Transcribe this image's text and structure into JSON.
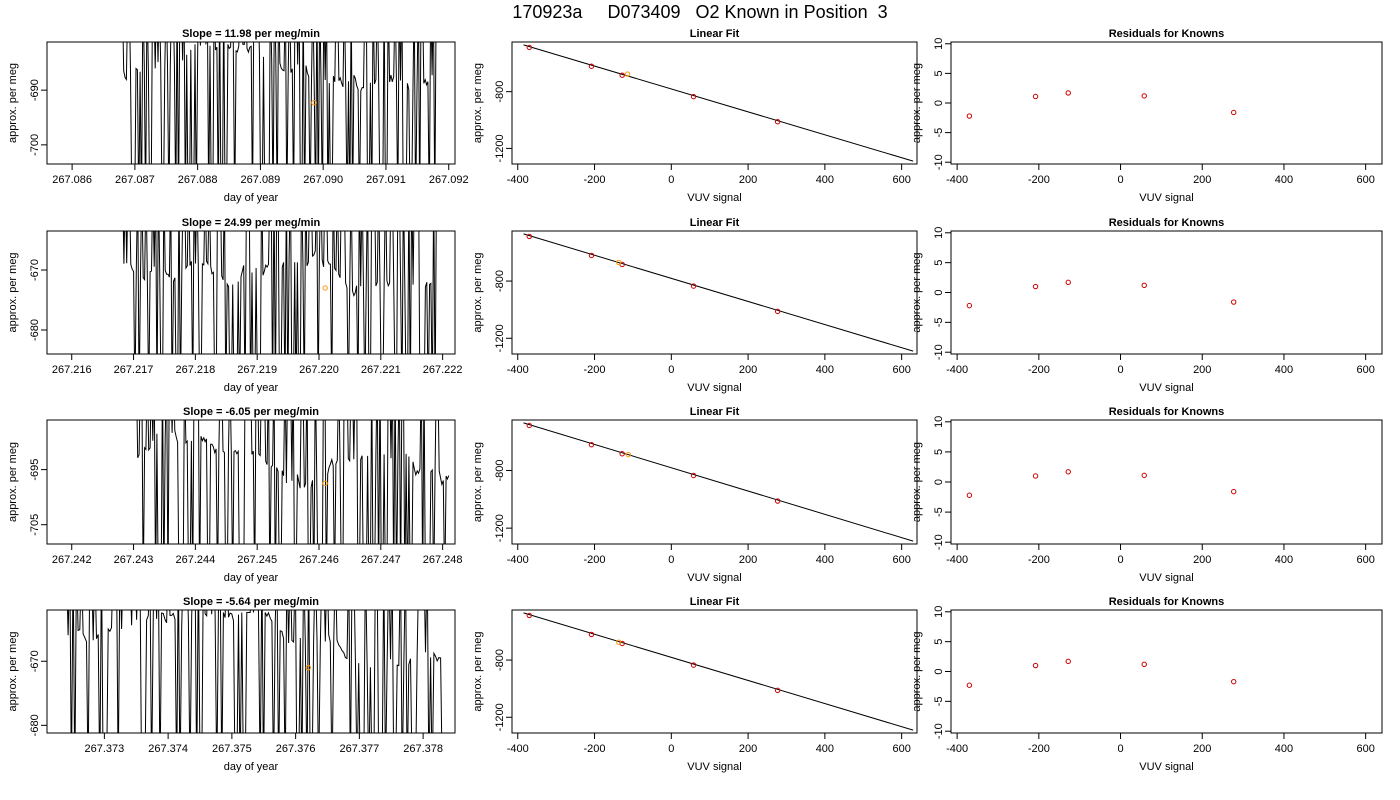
{
  "title": "170923a     D073409   O2 Known in Position  3",
  "colors": {
    "line": "#000000",
    "known_point": "#cc0000",
    "current_point": "#ff9900",
    "frame": "#000000"
  },
  "rows": [
    {
      "ts": {
        "title": "Slope =  11.98  per meg/min",
        "xlabel": "day of year",
        "ylabel": "approx. per meg",
        "xlim": [
          267.0856,
          267.0921
        ],
        "ylim": [
          -703.5,
          -681.2
        ],
        "xticks": [
          267.086,
          267.087,
          267.088,
          267.089,
          267.09,
          267.091,
          267.092
        ],
        "xtick_labels": [
          "267.086",
          "267.087",
          "267.088",
          "267.089",
          "267.090",
          "267.091",
          "267.092"
        ],
        "yticks": [
          -690,
          -700
        ],
        "ytick_labels": [
          "-690",
          "-700"
        ],
        "xstart": 267.0868,
        "xend": 267.0918,
        "marker": [
          267.08985,
          -692.3
        ],
        "seed": 7
      },
      "fit": {
        "title": "Linear Fit",
        "xlabel": "VUV signal",
        "ylabel": "approx. per meg",
        "xlim": [
          -415,
          640
        ],
        "ylim": [
          -1310,
          -450
        ],
        "xticks": [
          -400,
          -200,
          0,
          200,
          400,
          600
        ],
        "xtick_labels": [
          "-400",
          "-200",
          "0",
          "200",
          "400",
          "600"
        ],
        "yticks": [
          -800,
          -1200
        ],
        "ytick_labels": [
          "-800",
          "-1200"
        ],
        "line": [
          [
            -385,
            -470
          ],
          [
            630,
            -1290
          ]
        ],
        "knowns": [
          [
            -370,
            -488
          ],
          [
            -208,
            -621
          ],
          [
            -128,
            -684
          ],
          [
            58,
            -835
          ],
          [
            277,
            -1012
          ]
        ],
        "current": [
          [
            -114,
            -676
          ]
        ]
      },
      "res": {
        "title": "Residuals for Knowns",
        "xlabel": "VUV signal",
        "ylabel": "approx. per meg",
        "xlim": [
          -415,
          640
        ],
        "ylim": [
          -10.3,
          10.3
        ],
        "xticks": [
          -400,
          -200,
          0,
          200,
          400,
          600
        ],
        "xtick_labels": [
          "-400",
          "-200",
          "0",
          "200",
          "400",
          "600"
        ],
        "yticks": [
          10,
          5,
          0,
          -5,
          -10
        ],
        "ytick_labels": [
          "10",
          "5",
          "0",
          "-5",
          "-10"
        ],
        "points": [
          [
            -370,
            -2.2
          ],
          [
            -208,
            1.1
          ],
          [
            -128,
            1.7
          ],
          [
            58,
            1.2
          ],
          [
            277,
            -1.6
          ]
        ]
      }
    },
    {
      "ts": {
        "title": "Slope =  24.99  per meg/min",
        "xlabel": "day of year",
        "ylabel": "approx. per meg",
        "xlim": [
          267.2156,
          267.2222
        ],
        "ylim": [
          -684.0,
          -663.5
        ],
        "xticks": [
          267.216,
          267.217,
          267.218,
          267.219,
          267.22,
          267.221,
          267.222
        ],
        "xtick_labels": [
          "267.216",
          "267.217",
          "267.218",
          "267.219",
          "267.220",
          "267.221",
          "267.222"
        ],
        "yticks": [
          -670,
          -680
        ],
        "ytick_labels": [
          "-670",
          "-680"
        ],
        "xstart": 267.2168,
        "xend": 267.2219,
        "marker": [
          267.2201,
          -673.0
        ],
        "seed": 19
      },
      "fit": {
        "title": "Linear Fit",
        "xlabel": "VUV signal",
        "ylabel": "approx. per meg",
        "xlim": [
          -415,
          640
        ],
        "ylim": [
          -1310,
          -450
        ],
        "xticks": [
          -400,
          -200,
          0,
          200,
          400,
          600
        ],
        "xtick_labels": [
          "-400",
          "-200",
          "0",
          "200",
          "400",
          "600"
        ],
        "yticks": [
          -800,
          -1200
        ],
        "ytick_labels": [
          "-800",
          "-1200"
        ],
        "line": [
          [
            -385,
            -470
          ],
          [
            630,
            -1290
          ]
        ],
        "knowns": [
          [
            -370,
            -488
          ],
          [
            -208,
            -621
          ],
          [
            -128,
            -684
          ],
          [
            58,
            -835
          ],
          [
            277,
            -1012
          ]
        ],
        "current": [
          [
            -137,
            -670
          ]
        ]
      },
      "res": {
        "title": "Residuals for Knowns",
        "xlabel": "VUV signal",
        "ylabel": "approx. per meg",
        "xlim": [
          -415,
          640
        ],
        "ylim": [
          -10.3,
          10.3
        ],
        "xticks": [
          -400,
          -200,
          0,
          200,
          400,
          600
        ],
        "xtick_labels": [
          "-400",
          "-200",
          "0",
          "200",
          "400",
          "600"
        ],
        "yticks": [
          10,
          5,
          0,
          -5,
          -10
        ],
        "ytick_labels": [
          "10",
          "5",
          "0",
          "-5",
          "-10"
        ],
        "points": [
          [
            -370,
            -2.2
          ],
          [
            -208,
            1.0
          ],
          [
            -128,
            1.7
          ],
          [
            58,
            1.2
          ],
          [
            277,
            -1.6
          ]
        ]
      }
    },
    {
      "ts": {
        "title": "Slope =  -6.05  per meg/min",
        "xlabel": "day of year",
        "ylabel": "approx. per meg",
        "xlim": [
          267.2416,
          267.2482
        ],
        "ylim": [
          -708.5,
          -686.0
        ],
        "xticks": [
          267.242,
          267.243,
          267.244,
          267.245,
          267.246,
          267.247,
          267.248
        ],
        "xtick_labels": [
          "267.242",
          "267.243",
          "267.244",
          "267.245",
          "267.246",
          "267.247",
          "267.248"
        ],
        "yticks": [
          -695,
          -705
        ],
        "ytick_labels": [
          "-695",
          "-705"
        ],
        "xstart": 267.243,
        "xend": 267.2481,
        "marker": [
          267.2461,
          -697.5
        ],
        "seed": 31
      },
      "fit": {
        "title": "Linear Fit",
        "xlabel": "VUV signal",
        "ylabel": "approx. per meg",
        "xlim": [
          -415,
          640
        ],
        "ylim": [
          -1310,
          -450
        ],
        "xticks": [
          -400,
          -200,
          0,
          200,
          400,
          600
        ],
        "xtick_labels": [
          "-400",
          "-200",
          "0",
          "200",
          "400",
          "600"
        ],
        "yticks": [
          -800,
          -1200
        ],
        "ytick_labels": [
          "-800",
          "-1200"
        ],
        "line": [
          [
            -385,
            -470
          ],
          [
            630,
            -1290
          ]
        ],
        "knowns": [
          [
            -370,
            -488
          ],
          [
            -208,
            -621
          ],
          [
            -128,
            -684
          ],
          [
            58,
            -835
          ],
          [
            277,
            -1012
          ]
        ],
        "current": [
          [
            -112,
            -690
          ]
        ]
      },
      "res": {
        "title": "Residuals for Knowns",
        "xlabel": "VUV signal",
        "ylabel": "approx. per meg",
        "xlim": [
          -415,
          640
        ],
        "ylim": [
          -10.3,
          10.3
        ],
        "xticks": [
          -400,
          -200,
          0,
          200,
          400,
          600
        ],
        "xtick_labels": [
          "-400",
          "-200",
          "0",
          "200",
          "400",
          "600"
        ],
        "yticks": [
          10,
          5,
          0,
          -5,
          -10
        ],
        "ytick_labels": [
          "10",
          "5",
          "0",
          "-5",
          "-10"
        ],
        "points": [
          [
            -370,
            -2.2
          ],
          [
            -208,
            1.0
          ],
          [
            -128,
            1.7
          ],
          [
            58,
            1.1
          ],
          [
            277,
            -1.6
          ]
        ]
      }
    },
    {
      "ts": {
        "title": "Slope =  -5.64  per meg/min",
        "xlabel": "day of year",
        "ylabel": "approx. per meg",
        "xlim": [
          267.3721,
          267.3785
        ],
        "ylim": [
          -681.2,
          -662.0
        ],
        "xticks": [
          267.373,
          267.374,
          267.375,
          267.376,
          267.377,
          267.378
        ],
        "xtick_labels": [
          "267.373",
          "267.374",
          "267.375",
          "267.376",
          "267.377",
          "267.378"
        ],
        "yticks": [
          -670,
          -680
        ],
        "ytick_labels": [
          "-670",
          "-680"
        ],
        "xstart": 267.3723,
        "xend": 267.3783,
        "marker": [
          267.3762,
          -671.0
        ],
        "seed": 43
      },
      "fit": {
        "title": "Linear Fit",
        "xlabel": "VUV signal",
        "ylabel": "approx. per meg",
        "xlim": [
          -415,
          640
        ],
        "ylim": [
          -1310,
          -450
        ],
        "xticks": [
          -400,
          -200,
          0,
          200,
          400,
          600
        ],
        "xtick_labels": [
          "-400",
          "-200",
          "0",
          "200",
          "400",
          "600"
        ],
        "yticks": [
          -800,
          -1200
        ],
        "ytick_labels": [
          "-800",
          "-1200"
        ],
        "line": [
          [
            -385,
            -470
          ],
          [
            630,
            -1290
          ]
        ],
        "knowns": [
          [
            -370,
            -488
          ],
          [
            -208,
            -621
          ],
          [
            -128,
            -684
          ],
          [
            58,
            -835
          ],
          [
            277,
            -1012
          ]
        ],
        "current": [
          [
            -137,
            -675
          ]
        ]
      },
      "res": {
        "title": "Residuals for Knowns",
        "xlabel": "VUV signal",
        "ylabel": "approx. per meg",
        "xlim": [
          -415,
          640
        ],
        "ylim": [
          -10.3,
          10.3
        ],
        "xticks": [
          -400,
          -200,
          0,
          200,
          400,
          600
        ],
        "xtick_labels": [
          "-400",
          "-200",
          "0",
          "200",
          "400",
          "600"
        ],
        "yticks": [
          10,
          5,
          0,
          -5,
          -10
        ],
        "ytick_labels": [
          "10",
          "5",
          "0",
          "-5",
          "-10"
        ],
        "points": [
          [
            -370,
            -2.3
          ],
          [
            -208,
            1.0
          ],
          [
            -128,
            1.7
          ],
          [
            58,
            1.2
          ],
          [
            277,
            -1.7
          ]
        ]
      }
    }
  ],
  "chart_data": [
    {
      "type": "line",
      "title": "Slope =  11.98  per meg/min",
      "xlabel": "day of year",
      "ylabel": "approx. per meg",
      "xlim": [
        267.0856,
        267.0921
      ],
      "ylim": [
        -703.5,
        -681.2
      ],
      "grid": false,
      "note_point": [
        267.08985,
        -692.3
      ]
    },
    {
      "type": "scatter",
      "title": "Linear Fit",
      "xlabel": "VUV signal",
      "ylabel": "approx. per meg",
      "x": [
        -370,
        -208,
        -128,
        58,
        277
      ],
      "y": [
        -488,
        -621,
        -684,
        -835,
        -1012
      ],
      "fit_line": [
        [
          -385,
          -470
        ],
        [
          630,
          -1290
        ]
      ]
    },
    {
      "type": "scatter",
      "title": "Residuals for Knowns",
      "xlabel": "VUV signal",
      "ylabel": "approx. per meg",
      "x": [
        -370,
        -208,
        -128,
        58,
        277
      ],
      "y": [
        -2.2,
        1.1,
        1.7,
        1.2,
        -1.6
      ],
      "ylim": [
        -10.3,
        10.3
      ]
    },
    {
      "type": "line",
      "title": "Slope =  24.99  per meg/min",
      "xlabel": "day of year",
      "ylabel": "approx. per meg",
      "xlim": [
        267.2156,
        267.2222
      ],
      "ylim": [
        -684.0,
        -663.5
      ],
      "grid": false,
      "note_point": [
        267.2201,
        -673.0
      ]
    },
    {
      "type": "scatter",
      "title": "Linear Fit",
      "xlabel": "VUV signal",
      "ylabel": "approx. per meg",
      "x": [
        -370,
        -208,
        -128,
        58,
        277
      ],
      "y": [
        -488,
        -621,
        -684,
        -835,
        -1012
      ]
    },
    {
      "type": "scatter",
      "title": "Residuals for Knowns",
      "xlabel": "VUV signal",
      "ylabel": "approx. per meg",
      "x": [
        -370,
        -208,
        -128,
        58,
        277
      ],
      "y": [
        -2.2,
        1.0,
        1.7,
        1.2,
        -1.6
      ]
    },
    {
      "type": "line",
      "title": "Slope =  -6.05  per meg/min",
      "xlabel": "day of year",
      "ylabel": "approx. per meg",
      "xlim": [
        267.2416,
        267.2482
      ],
      "ylim": [
        -708.5,
        -686.0
      ],
      "grid": false,
      "note_point": [
        267.2461,
        -697.5
      ]
    },
    {
      "type": "scatter",
      "title": "Linear Fit",
      "xlabel": "VUV signal",
      "ylabel": "approx. per meg",
      "x": [
        -370,
        -208,
        -128,
        58,
        277
      ],
      "y": [
        -488,
        -621,
        -684,
        -835,
        -1012
      ]
    },
    {
      "type": "scatter",
      "title": "Residuals for Knowns",
      "xlabel": "VUV signal",
      "ylabel": "approx. per meg",
      "x": [
        -370,
        -208,
        -128,
        58,
        277
      ],
      "y": [
        -2.2,
        1.0,
        1.7,
        1.1,
        -1.6
      ]
    },
    {
      "type": "line",
      "title": "Slope =  -5.64  per meg/min",
      "xlabel": "day of year",
      "ylabel": "approx. per meg",
      "xlim": [
        267.3721,
        267.3785
      ],
      "ylim": [
        -681.2,
        -662.0
      ],
      "grid": false,
      "note_point": [
        267.3762,
        -671.0
      ]
    },
    {
      "type": "scatter",
      "title": "Linear Fit",
      "xlabel": "VUV signal",
      "ylabel": "approx. per meg",
      "x": [
        -370,
        -208,
        -128,
        58,
        277
      ],
      "y": [
        -488,
        -621,
        -684,
        -835,
        -1012
      ]
    },
    {
      "type": "scatter",
      "title": "Residuals for Knowns",
      "xlabel": "VUV signal",
      "ylabel": "approx. per meg",
      "x": [
        -370,
        -208,
        -128,
        58,
        277
      ],
      "y": [
        -2.3,
        1.0,
        1.7,
        1.2,
        -1.7
      ]
    }
  ]
}
